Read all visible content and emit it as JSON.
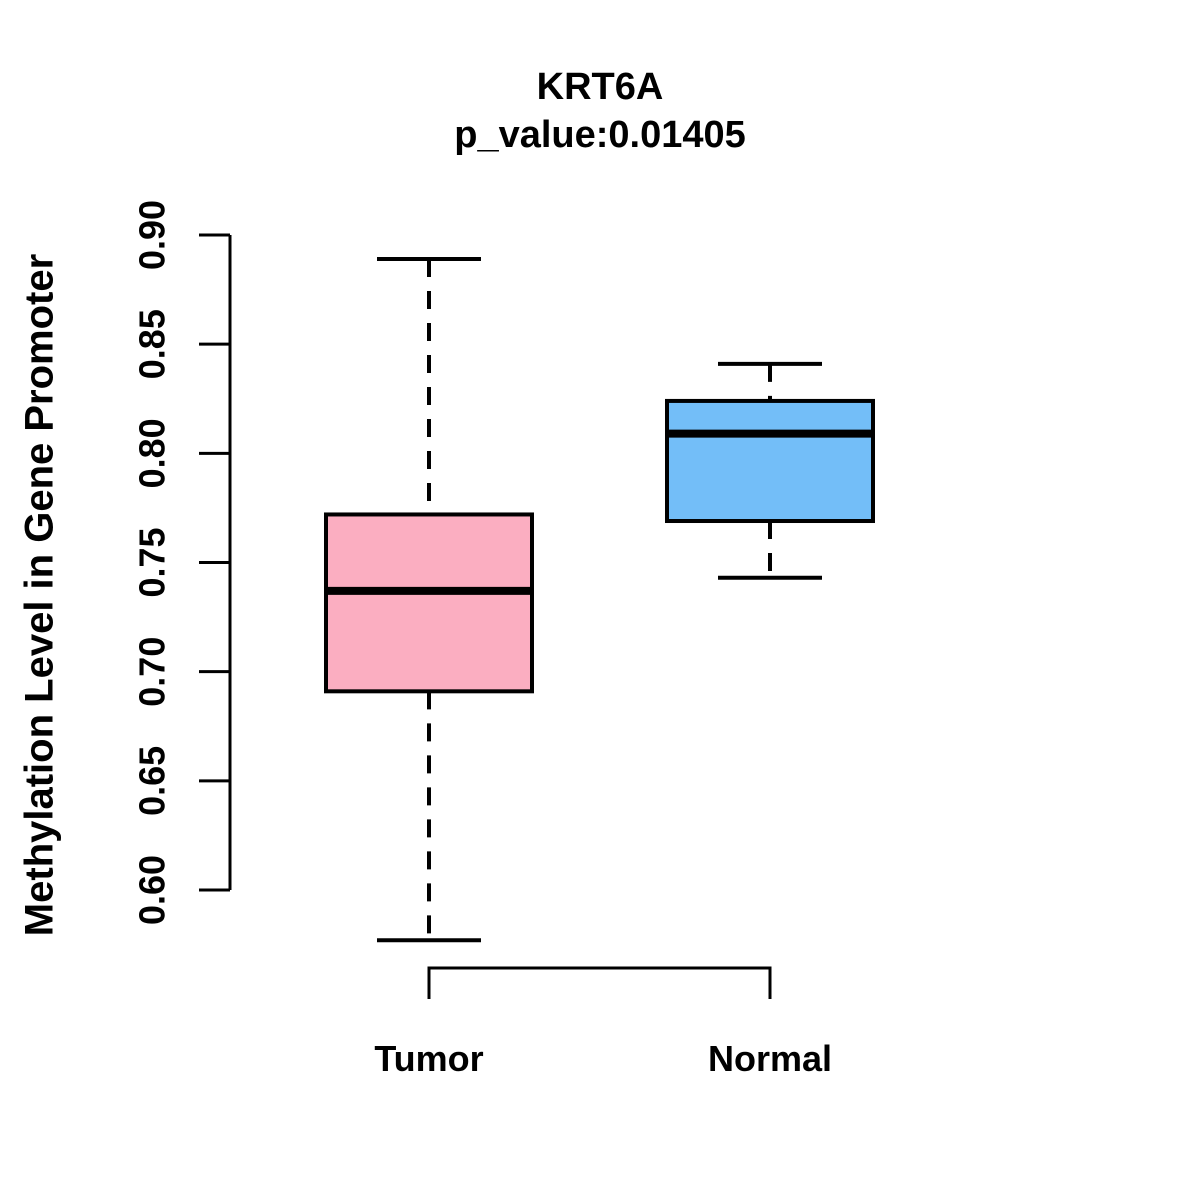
{
  "chart_data": {
    "type": "boxplot",
    "title": "KRT6A",
    "subtitle": "p_value:0.01405",
    "ylabel": "Methylation Level in Gene Promoter",
    "xlabel": "",
    "categories": [
      "Tumor",
      "Normal"
    ],
    "ylim": [
      0.6,
      0.9
    ],
    "yticks": [
      "0.60",
      "0.65",
      "0.70",
      "0.75",
      "0.80",
      "0.85",
      "0.90"
    ],
    "grid": false,
    "legend": "none",
    "series": [
      {
        "name": "Tumor",
        "fill": "#FBAEC1",
        "whisker_low": 0.577,
        "q1": 0.691,
        "median": 0.737,
        "q3": 0.772,
        "whisker_high": 0.889
      },
      {
        "name": "Normal",
        "fill": "#73BEF8",
        "whisker_low": 0.743,
        "q1": 0.769,
        "median": 0.809,
        "q3": 0.824,
        "whisker_high": 0.841
      }
    ],
    "colors": {
      "box_border": "#000000",
      "median_line": "#000000",
      "whisker": "#000000",
      "axis": "#000000",
      "text": "#000000",
      "background": "#FFFFFF"
    }
  }
}
